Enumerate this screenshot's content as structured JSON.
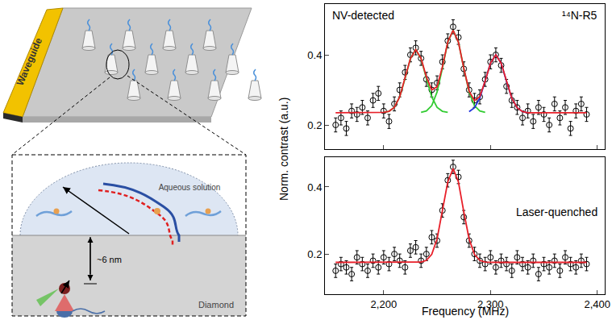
{
  "diagram": {
    "waveguide": "Waveguide",
    "solution": "Aqueous solution",
    "distance": "~6 nm",
    "substrate": "Diamond"
  },
  "y_label": "Norm. contrast (a.u.)",
  "chart_data": [
    {
      "type": "scatter",
      "annotations": [
        "NV-detected",
        "¹⁴N-R5"
      ],
      "x": [
        2155,
        2160,
        2165,
        2170,
        2175,
        2180,
        2185,
        2190,
        2195,
        2200,
        2205,
        2210,
        2215,
        2220,
        2225,
        2230,
        2235,
        2240,
        2245,
        2250,
        2255,
        2260,
        2265,
        2270,
        2275,
        2280,
        2285,
        2290,
        2295,
        2300,
        2305,
        2310,
        2315,
        2320,
        2325,
        2330,
        2335,
        2340,
        2345,
        2350,
        2355,
        2360,
        2365,
        2370,
        2375,
        2380,
        2385,
        2390
      ],
      "xlim": [
        2145,
        2407
      ],
      "xticks": [
        {
          "value": 2200,
          "label": "2,200"
        },
        {
          "value": 2300,
          "label": "2,300"
        },
        {
          "value": 2400,
          "label": "2,400"
        }
      ],
      "ylim": [
        0.131,
        0.545
      ],
      "yticks": [
        0.2,
        0.4
      ],
      "tick_labels": "y",
      "series": [
        {
          "type": "scatter",
          "marker": "circle-open",
          "color": "#000000",
          "values": [
            0.2,
            0.22,
            0.19,
            0.24,
            0.23,
            0.25,
            0.22,
            0.27,
            0.29,
            0.24,
            0.21,
            0.26,
            0.3,
            0.35,
            0.4,
            0.42,
            0.39,
            0.33,
            0.3,
            0.32,
            0.38,
            0.44,
            0.48,
            0.45,
            0.36,
            0.3,
            0.27,
            0.28,
            0.33,
            0.38,
            0.4,
            0.37,
            0.31,
            0.27,
            0.25,
            0.22,
            0.24,
            0.21,
            0.25,
            0.23,
            0.2,
            0.26,
            0.22,
            0.25,
            0.19,
            0.24,
            0.26,
            0.23
          ],
          "errors": [
            0.02,
            0.02,
            0.02,
            0.02,
            0.02,
            0.02,
            0.02,
            0.02,
            0.02,
            0.02,
            0.02,
            0.02,
            0.02,
            0.02,
            0.02,
            0.02,
            0.02,
            0.02,
            0.02,
            0.02,
            0.02,
            0.02,
            0.02,
            0.02,
            0.02,
            0.02,
            0.02,
            0.02,
            0.02,
            0.02,
            0.02,
            0.02,
            0.02,
            0.02,
            0.02,
            0.02,
            0.02,
            0.02,
            0.02,
            0.02,
            0.02,
            0.02,
            0.02,
            0.02,
            0.02,
            0.02,
            0.02,
            0.02
          ]
        },
        {
          "type": "line",
          "line_style": "solid",
          "color": "#33cc33",
          "x": [
            2200,
            2205,
            2210,
            2215,
            2220,
            2225,
            2230,
            2235,
            2240,
            2245,
            2250,
            2255,
            2260
          ],
          "values": [
            0.236,
            0.239,
            0.25,
            0.28,
            0.332,
            0.389,
            0.415,
            0.389,
            0.332,
            0.28,
            0.25,
            0.239,
            0.236
          ]
        },
        {
          "type": "line",
          "line_style": "solid",
          "color": "#33cc33",
          "x": [
            2235,
            2240,
            2245,
            2250,
            2255,
            2260,
            2265,
            2270,
            2275,
            2280,
            2285,
            2290,
            2295
          ],
          "values": [
            0.236,
            0.24,
            0.255,
            0.294,
            0.362,
            0.436,
            0.47,
            0.436,
            0.362,
            0.294,
            0.255,
            0.24,
            0.236
          ]
        },
        {
          "type": "line",
          "line_style": "solid",
          "color": "#2233dd",
          "x": [
            2280,
            2285,
            2290,
            2295,
            2300,
            2305,
            2310,
            2315,
            2320,
            2325,
            2330,
            2335
          ],
          "values": [
            0.238,
            0.249,
            0.276,
            0.324,
            0.376,
            0.4,
            0.376,
            0.324,
            0.276,
            0.249,
            0.238,
            0.235
          ]
        },
        {
          "type": "line",
          "line_style": "solid",
          "color": "#e8202a",
          "values": [
            0.235,
            0.235,
            0.235,
            0.235,
            0.235,
            0.235,
            0.235,
            0.235,
            0.235,
            0.236,
            0.239,
            0.25,
            0.28,
            0.332,
            0.389,
            0.415,
            0.39,
            0.337,
            0.3,
            0.309,
            0.366,
            0.437,
            0.47,
            0.436,
            0.362,
            0.297,
            0.269,
            0.281,
            0.325,
            0.376,
            0.4,
            0.376,
            0.324,
            0.276,
            0.249,
            0.238,
            0.235,
            0.235,
            0.235,
            0.235,
            0.235,
            0.235,
            0.235,
            0.235,
            0.235,
            0.235,
            0.235,
            0.235
          ]
        }
      ]
    },
    {
      "type": "scatter",
      "annotations": [
        "Laser-quenched"
      ],
      "x_label": "Frequency (MHz)",
      "x": [
        2155,
        2160,
        2165,
        2170,
        2175,
        2180,
        2185,
        2190,
        2195,
        2200,
        2205,
        2210,
        2215,
        2220,
        2225,
        2230,
        2235,
        2240,
        2245,
        2250,
        2255,
        2260,
        2265,
        2270,
        2275,
        2280,
        2285,
        2290,
        2295,
        2300,
        2305,
        2310,
        2315,
        2320,
        2325,
        2330,
        2335,
        2340,
        2345,
        2350,
        2355,
        2360,
        2365,
        2370,
        2375,
        2380,
        2385,
        2390
      ],
      "xlim": [
        2145,
        2407
      ],
      "xticks": [
        {
          "value": 2200,
          "label": "2,200"
        },
        {
          "value": 2300,
          "label": "2,300"
        },
        {
          "value": 2400,
          "label": "2,400"
        }
      ],
      "ylim": [
        0.08,
        0.489
      ],
      "yticks": [
        0.2,
        0.4
      ],
      "series": [
        {
          "type": "scatter",
          "marker": "circle-open",
          "color": "#000000",
          "values": [
            0.15,
            0.17,
            0.16,
            0.14,
            0.19,
            0.17,
            0.15,
            0.18,
            0.16,
            0.19,
            0.17,
            0.2,
            0.18,
            0.16,
            0.21,
            0.22,
            0.18,
            0.2,
            0.25,
            0.24,
            0.33,
            0.42,
            0.46,
            0.43,
            0.31,
            0.24,
            0.2,
            0.18,
            0.17,
            0.19,
            0.16,
            0.18,
            0.17,
            0.15,
            0.19,
            0.17,
            0.16,
            0.18,
            0.14,
            0.17,
            0.16,
            0.18,
            0.15,
            0.19,
            0.17,
            0.16,
            0.18,
            0.17
          ],
          "errors": [
            0.02,
            0.02,
            0.02,
            0.02,
            0.02,
            0.02,
            0.02,
            0.02,
            0.02,
            0.02,
            0.02,
            0.02,
            0.02,
            0.02,
            0.02,
            0.02,
            0.02,
            0.02,
            0.02,
            0.02,
            0.02,
            0.02,
            0.02,
            0.02,
            0.02,
            0.02,
            0.02,
            0.02,
            0.02,
            0.02,
            0.02,
            0.02,
            0.02,
            0.02,
            0.02,
            0.02,
            0.02,
            0.02,
            0.02,
            0.02,
            0.02,
            0.02,
            0.02,
            0.02,
            0.02,
            0.02,
            0.02,
            0.02
          ]
        },
        {
          "type": "line",
          "line_style": "solid",
          "color": "#e8202a",
          "values": [
            0.175,
            0.175,
            0.175,
            0.175,
            0.175,
            0.175,
            0.175,
            0.175,
            0.175,
            0.175,
            0.175,
            0.175,
            0.175,
            0.175,
            0.175,
            0.175,
            0.176,
            0.181,
            0.199,
            0.245,
            0.326,
            0.415,
            0.455,
            0.415,
            0.326,
            0.245,
            0.199,
            0.181,
            0.176,
            0.175,
            0.175,
            0.175,
            0.175,
            0.175,
            0.175,
            0.175,
            0.175,
            0.175,
            0.175,
            0.175,
            0.175,
            0.175,
            0.175,
            0.175,
            0.175,
            0.175,
            0.175,
            0.175
          ]
        }
      ]
    }
  ]
}
